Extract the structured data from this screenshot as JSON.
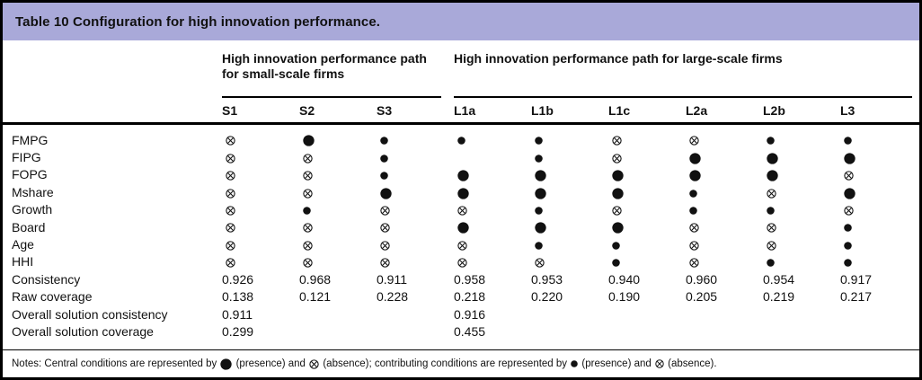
{
  "title": "Table 10 Configuration for high innovation performance.",
  "colors": {
    "title_bar_bg": "#a9a9d9",
    "border": "#000000",
    "text": "#111111",
    "symbol": "#111111"
  },
  "table": {
    "groups": [
      {
        "label": "High innovation performance path for small-scale firms",
        "span": 3
      },
      {
        "label": "High innovation performance path for large-scale firms",
        "span": 6
      }
    ],
    "columns": [
      "S1",
      "S2",
      "S3",
      "L1a",
      "L1b",
      "L1c",
      "L2a",
      "L2b",
      "L3"
    ],
    "symbol_legend": {
      "CP": "central-condition-presence (large filled circle)",
      "CA": "central-condition-absence (circled cross)",
      "P": "contributing-condition-presence (small filled circle)",
      "A": "contributing-condition-absence (small circled cross)"
    },
    "rows": [
      {
        "label": "FMPG",
        "cells": [
          "A",
          "CP",
          "P",
          "P",
          "P",
          "A",
          "A",
          "P",
          "P"
        ]
      },
      {
        "label": "FIPG",
        "cells": [
          "A",
          "A",
          "P",
          "",
          "P",
          "A",
          "CP",
          "CP",
          "CP"
        ]
      },
      {
        "label": "FOPG",
        "cells": [
          "A",
          "A",
          "P",
          "CP",
          "CP",
          "CP",
          "CP",
          "CP",
          "A"
        ]
      },
      {
        "label": "Mshare",
        "cells": [
          "A",
          "A",
          "CP",
          "CP",
          "CP",
          "CP",
          "P",
          "A",
          "CP"
        ]
      },
      {
        "label": "Growth",
        "cells": [
          "A",
          "P",
          "A",
          "A",
          "P",
          "A",
          "P",
          "P",
          "A"
        ]
      },
      {
        "label": "Board",
        "cells": [
          "A",
          "A",
          "A",
          "CP",
          "CP",
          "CP",
          "A",
          "A",
          "P"
        ]
      },
      {
        "label": "Age",
        "cells": [
          "A",
          "A",
          "A",
          "A",
          "P",
          "P",
          "A",
          "A",
          "P"
        ]
      },
      {
        "label": "HHI",
        "cells": [
          "A",
          "A",
          "A",
          "A",
          "A",
          "P",
          "A",
          "P",
          "P"
        ]
      },
      {
        "label": "Consistency",
        "cells": [
          "0.926",
          "0.968",
          "0.911",
          "0.958",
          "0.953",
          "0.940",
          "0.960",
          "0.954",
          "0.917"
        ]
      },
      {
        "label": "Raw coverage",
        "cells": [
          "0.138",
          "0.121",
          "0.228",
          "0.218",
          "0.220",
          "0.190",
          "0.205",
          "0.219",
          "0.217"
        ]
      },
      {
        "label": "Overall solution consistency",
        "cells": [
          "0.911",
          "",
          "",
          "0.916",
          "",
          "",
          "",
          "",
          ""
        ]
      },
      {
        "label": "Overall solution coverage",
        "cells": [
          "0.299",
          "",
          "",
          "0.455",
          "",
          "",
          "",
          "",
          ""
        ]
      }
    ]
  },
  "notes": {
    "parts": [
      {
        "t": "Notes: Central conditions are represented by "
      },
      {
        "s": "CP"
      },
      {
        "t": " (presence) and "
      },
      {
        "s": "CA"
      },
      {
        "t": " (absence); contributing conditions are represented by "
      },
      {
        "s": "P"
      },
      {
        "t": " (presence) and "
      },
      {
        "s": "A"
      },
      {
        "t": " (absence)."
      }
    ]
  }
}
